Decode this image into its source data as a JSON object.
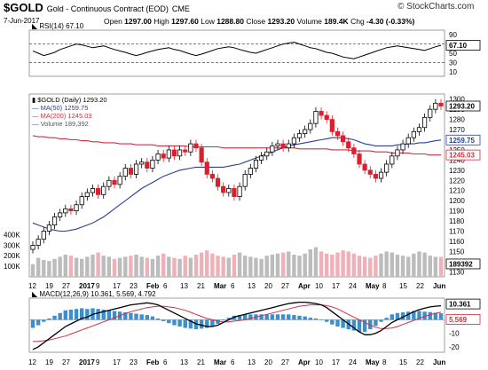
{
  "header": {
    "symbol": "$GOLD",
    "description": "Gold - Continuous Contract (EOD)",
    "exchange": "CME",
    "brand": "© StockCharts.com",
    "date": "7-Jun-2017",
    "open_label": "Open",
    "open": "1297.00",
    "high_label": "High",
    "high": "1297.60",
    "low_label": "Low",
    "low": "1288.80",
    "close_label": "Close",
    "close": "1293.20",
    "volume_label": "Volume",
    "volume": "189.4K",
    "chg_label": "Chg",
    "chg": "-4.30 (-0.33%)"
  },
  "colors": {
    "up": "#000000",
    "down": "#dd1f2d",
    "ma50": "#2b3f9c",
    "ma200": "#d03040",
    "vol_up": "#bcbcbc",
    "vol_down": "#f0b0b8",
    "macd_hist": "#3c8fcf",
    "badge_price": "#000000"
  },
  "chart_data": [
    {
      "type": "line",
      "panel": "RSI",
      "legend": "RSI(14) 67.10",
      "yticks": [
        10,
        30,
        50,
        70,
        90
      ],
      "ylim": [
        0,
        100
      ],
      "reference_lines": [
        30,
        70
      ],
      "last_value": "67.10",
      "values": [
        55,
        50,
        45,
        48,
        52,
        58,
        62,
        66,
        70,
        68,
        65,
        62,
        64,
        66,
        62,
        58,
        55,
        52,
        48,
        45,
        48,
        52,
        55,
        58,
        60,
        62,
        58,
        56,
        52,
        48,
        45,
        48,
        52,
        56,
        60,
        62,
        64,
        62,
        58,
        55,
        52,
        50,
        54,
        58,
        62,
        66,
        70,
        72,
        74,
        70,
        66,
        62,
        60,
        56,
        52,
        50,
        46,
        42,
        40,
        38,
        42,
        46,
        50,
        54,
        58,
        62,
        64,
        66,
        64,
        62,
        60,
        58,
        56,
        60,
        64,
        67.1
      ]
    },
    {
      "type": "candlestick",
      "panel": "Price",
      "legend": [
        "$GOLD (Daily) 1293.20",
        "MA(50) 1259.75",
        "MA(200) 1245.03",
        "Volume 189,392"
      ],
      "x_labels": [
        "12",
        "19",
        "27",
        "2017",
        "9",
        "17",
        "23",
        "Feb",
        "6",
        "13",
        "21",
        "Mar",
        "6",
        "13",
        "20",
        "27",
        "Apr",
        "10",
        "17",
        "24",
        "May",
        "8",
        "15",
        "22",
        "Jun"
      ],
      "yticks": [
        1130,
        1140,
        1150,
        1160,
        1170,
        1180,
        1190,
        1200,
        1210,
        1220,
        1230,
        1240,
        1250,
        1260,
        1270,
        1280,
        1290,
        1300
      ],
      "ylim": [
        1125,
        1305
      ],
      "close": [
        1156,
        1162,
        1170,
        1176,
        1184,
        1188,
        1192,
        1190,
        1196,
        1204,
        1208,
        1212,
        1206,
        1214,
        1220,
        1216,
        1224,
        1232,
        1226,
        1236,
        1238,
        1232,
        1240,
        1246,
        1242,
        1250,
        1244,
        1250,
        1248,
        1256,
        1252,
        1238,
        1226,
        1222,
        1214,
        1208,
        1212,
        1204,
        1214,
        1226,
        1232,
        1240,
        1244,
        1248,
        1254,
        1256,
        1252,
        1256,
        1262,
        1266,
        1270,
        1276,
        1288,
        1284,
        1280,
        1268,
        1264,
        1258,
        1252,
        1246,
        1236,
        1230,
        1226,
        1222,
        1228,
        1236,
        1244,
        1250,
        1256,
        1262,
        1268,
        1272,
        1282,
        1290,
        1296,
        1293.2
      ],
      "ma50": [
        1178,
        1176,
        1174,
        1172,
        1171,
        1170,
        1170,
        1171,
        1172,
        1174,
        1176,
        1178,
        1181,
        1184,
        1188,
        1192,
        1196,
        1200,
        1204,
        1208,
        1212,
        1215,
        1218,
        1221,
        1224,
        1226,
        1228,
        1230,
        1231,
        1232,
        1233,
        1233,
        1233,
        1233,
        1233,
        1233,
        1234,
        1235,
        1236,
        1238,
        1240,
        1242,
        1244,
        1246,
        1248,
        1250,
        1252,
        1254,
        1255,
        1256,
        1257,
        1258,
        1259,
        1260,
        1261,
        1262,
        1262,
        1262,
        1261,
        1260,
        1258,
        1256,
        1255,
        1254,
        1254,
        1254,
        1254,
        1255,
        1255,
        1256,
        1256,
        1257,
        1257,
        1258,
        1259,
        1259.75
      ],
      "ma200": [
        1264,
        1263,
        1263,
        1262,
        1262,
        1261,
        1261,
        1260,
        1260,
        1259,
        1259,
        1258,
        1258,
        1257,
        1257,
        1257,
        1256,
        1256,
        1256,
        1255,
        1255,
        1255,
        1255,
        1254,
        1254,
        1254,
        1254,
        1254,
        1254,
        1253,
        1253,
        1253,
        1253,
        1253,
        1253,
        1252,
        1252,
        1252,
        1252,
        1252,
        1252,
        1252,
        1252,
        1252,
        1252,
        1252,
        1252,
        1252,
        1252,
        1251,
        1251,
        1251,
        1251,
        1251,
        1251,
        1250,
        1250,
        1250,
        1250,
        1249,
        1249,
        1249,
        1249,
        1248,
        1248,
        1248,
        1247,
        1247,
        1247,
        1247,
        1246,
        1246,
        1246,
        1245,
        1245,
        1245.03
      ],
      "badges": [
        "1293.20",
        "1259.75",
        "1245.03"
      ]
    },
    {
      "type": "bar",
      "panel": "Volume",
      "yticks": [
        "400K",
        "300K",
        "200K",
        "100K"
      ],
      "ylim": [
        0,
        420
      ],
      "unit": "K",
      "badge": "189392",
      "values": [
        120,
        180,
        160,
        150,
        170,
        190,
        210,
        200,
        180,
        170,
        190,
        210,
        230,
        200,
        190,
        170,
        180,
        190,
        200,
        210,
        190,
        180,
        170,
        200,
        220,
        190,
        180,
        170,
        200,
        180,
        210,
        230,
        250,
        220,
        200,
        190,
        180,
        210,
        230,
        200,
        190,
        180,
        170,
        200,
        210,
        220,
        230,
        240,
        210,
        200,
        220,
        260,
        280,
        240,
        220,
        210,
        230,
        250,
        240,
        220,
        200,
        190,
        180,
        200,
        220,
        240,
        230,
        210,
        200,
        190,
        220,
        240,
        230,
        200,
        190,
        189.4
      ]
    },
    {
      "type": "line",
      "panel": "MACD",
      "legend": "MACD(12,26,9) 10.361, 5.569, 4.792",
      "yticks": [
        10,
        0,
        -10,
        -20
      ],
      "ylim": [
        -24,
        16
      ],
      "last_values": [
        "10.361",
        "5.569"
      ],
      "macd": [
        -22,
        -20,
        -17,
        -14,
        -11,
        -8,
        -5,
        -3,
        -1,
        1,
        2,
        4,
        5,
        6,
        7,
        8,
        9,
        10,
        11,
        11.5,
        12,
        12.5,
        12,
        11,
        9,
        7,
        5,
        3,
        1,
        -1,
        -3,
        -4,
        -5,
        -5,
        -4,
        -2,
        0,
        2,
        3,
        4,
        5,
        6,
        7,
        8,
        9,
        10,
        11,
        12,
        12.5,
        13,
        13,
        12.5,
        12,
        11,
        9,
        6,
        3,
        0,
        -3,
        -6,
        -9,
        -11,
        -11,
        -10,
        -8,
        -5,
        -2,
        0,
        2,
        4,
        6,
        7.5,
        8.5,
        9.5,
        10,
        10.361
      ],
      "signal": [
        -16,
        -16,
        -15.5,
        -15,
        -14,
        -13,
        -12,
        -10.5,
        -9,
        -7.5,
        -6,
        -4.5,
        -3,
        -1.5,
        0,
        1.5,
        3,
        4.5,
        6,
        7,
        8,
        9,
        9.5,
        10,
        10,
        9.5,
        9,
        8,
        7,
        5.5,
        4,
        2.5,
        1,
        0,
        -1,
        -1.5,
        -1.5,
        -1,
        -0.5,
        0,
        1,
        2,
        3,
        4,
        5,
        6,
        7,
        8,
        9,
        10,
        10.5,
        11,
        11,
        11,
        10.5,
        9.5,
        8,
        6,
        4,
        2,
        0,
        -2,
        -4,
        -5.5,
        -6.5,
        -6.5,
        -6,
        -5,
        -3.5,
        -2,
        -0.5,
        1,
        2.5,
        3.8,
        4.8,
        5.569
      ]
    }
  ]
}
